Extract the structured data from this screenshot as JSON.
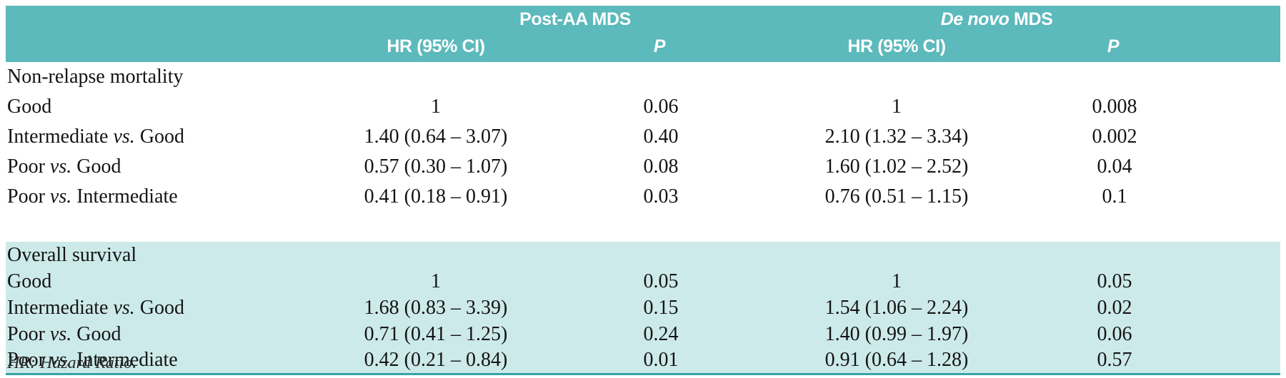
{
  "header": {
    "group1": "Post-AA MDS",
    "group2_italic": "De novo",
    "group2_rest": " MDS",
    "hr1_label": "HR (95% CI)",
    "p1_label": "P",
    "hr2_label": "HR (95% CI)",
    "p2_label": "P"
  },
  "section1": {
    "title": "Non-relapse mortality",
    "rows": [
      {
        "label": "Good",
        "vs": "",
        "label2": "",
        "hr1": "1",
        "p1": "0.06",
        "hr2": "1",
        "p2": "0.008"
      },
      {
        "label": "Intermediate ",
        "vs": "vs.",
        "label2": " Good",
        "hr1": "1.40 (0.64 – 3.07)",
        "p1": "0.40",
        "hr2": "2.10 (1.32 – 3.34)",
        "p2": "0.002"
      },
      {
        "label": "Poor ",
        "vs": "vs.",
        "label2": " Good",
        "hr1": "0.57 (0.30 – 1.07)",
        "p1": "0.08",
        "hr2": "1.60 (1.02 – 2.52)",
        "p2": "0.04"
      },
      {
        "label": "Poor ",
        "vs": "vs.",
        "label2": " Intermediate",
        "hr1": "0.41 (0.18 – 0.91)",
        "p1": "0.03",
        "hr2": "0.76 (0.51 – 1.15)",
        "p2": "0.1"
      }
    ]
  },
  "section2": {
    "title": "Overall survival",
    "rows": [
      {
        "label": "Good",
        "vs": "",
        "label2": "",
        "hr1": "1",
        "p1": "0.05",
        "hr2": "1",
        "p2": "0.05"
      },
      {
        "label": "Intermediate ",
        "vs": "vs.",
        "label2": " Good",
        "hr1": "1.68 (0.83 – 3.39)",
        "p1": "0.15",
        "hr2": "1.54 (1.06 – 2.24)",
        "p2": "0.02"
      },
      {
        "label": "Poor ",
        "vs": "vs.",
        "label2": " Good",
        "hr1": "0.71 (0.41 – 1.25)",
        "p1": "0.24",
        "hr2": "1.40 (0.99 – 1.97)",
        "p2": "0.06"
      },
      {
        "label": "Poor ",
        "vs": "vs.",
        "label2": " Intermediate",
        "hr1": "0.42 (0.21 – 0.84)",
        "p1": "0.01",
        "hr2": "0.91 (0.64 – 1.28)",
        "p2": "0.57"
      }
    ]
  },
  "footnote": "HR: Hazard Ratio.",
  "colors": {
    "header_teal": "#5cb9bc",
    "section_teal": "#cdeaea",
    "rule_teal": "#35a3a8",
    "header_text": "#ffffff",
    "body_text": "#141414"
  }
}
